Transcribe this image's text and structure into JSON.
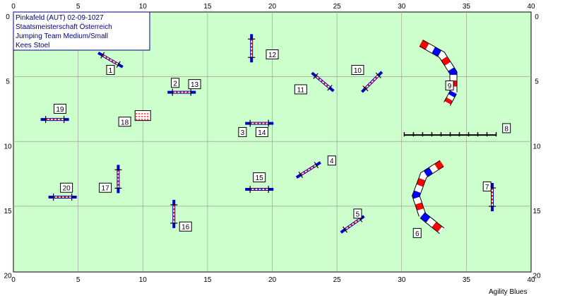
{
  "info": {
    "lines": [
      "Pinkafeld (AUT) 02-09-1027",
      "Staatsmeisterschaft Österreich",
      "Jumping Team Medium/Small",
      "Kees Stoel"
    ]
  },
  "footer": "Agility Blues",
  "axes": {
    "x_ticks": [
      "0",
      "5",
      "10",
      "15",
      "20",
      "25",
      "30",
      "35",
      "40"
    ],
    "y_ticks": [
      "0",
      "5",
      "10",
      "15",
      "20"
    ]
  },
  "colors": {
    "field": "#ccffcc",
    "grid": "#a0a0a0",
    "bar_blue": "#0000cc",
    "bar_red": "#ff0000",
    "tunnel_red": "#ff0000",
    "tunnel_blue": "#0000ff",
    "info_text": "#000080"
  },
  "course": {
    "field_width_m": 40,
    "field_height_m": 20,
    "jumps": [
      {
        "number": "1",
        "x": 7.5,
        "y": 3.7,
        "angle": 30
      },
      {
        "number": "2",
        "x": 13.0,
        "y": 6.2,
        "angle": 0
      },
      {
        "number": "3",
        "x": 19.0,
        "y": 8.6,
        "angle": 0
      },
      {
        "number": "4",
        "x": 22.8,
        "y": 12.2,
        "angle": -32
      },
      {
        "number": "5",
        "x": 26.2,
        "y": 16.4,
        "angle": -35
      },
      {
        "number": "7",
        "x": 37.0,
        "y": 14.3,
        "angle": 90
      },
      {
        "number": "10",
        "x": 27.7,
        "y": 5.4,
        "angle": -45
      },
      {
        "number": "11",
        "x": 23.9,
        "y": 5.4,
        "angle": 40
      },
      {
        "number": "12",
        "x": 18.4,
        "y": 2.8,
        "angle": 90
      },
      {
        "number": "15",
        "x": 19.0,
        "y": 13.7,
        "angle": 0
      },
      {
        "number": "16",
        "x": 12.4,
        "y": 15.6,
        "angle": 90
      },
      {
        "number": "17",
        "x": 8.1,
        "y": 12.9,
        "angle": 90
      },
      {
        "number": "19",
        "x": 3.2,
        "y": 8.3,
        "angle": 0
      },
      {
        "number": "20",
        "x": 3.8,
        "y": 14.3,
        "angle": 0
      }
    ],
    "labels": [
      {
        "text": "1",
        "x": 7.5,
        "y": 4.5
      },
      {
        "text": "2",
        "x": 12.5,
        "y": 5.5
      },
      {
        "text": "13",
        "x": 14.0,
        "y": 5.6
      },
      {
        "text": "3",
        "x": 17.7,
        "y": 9.3
      },
      {
        "text": "14",
        "x": 19.2,
        "y": 9.3
      },
      {
        "text": "4",
        "x": 24.6,
        "y": 11.5
      },
      {
        "text": "5",
        "x": 26.6,
        "y": 15.6
      },
      {
        "text": "6",
        "x": 31.2,
        "y": 17.1
      },
      {
        "text": "7",
        "x": 36.6,
        "y": 13.5
      },
      {
        "text": "8",
        "x": 38.1,
        "y": 9.0
      },
      {
        "text": "9",
        "x": 33.7,
        "y": 5.7
      },
      {
        "text": "10",
        "x": 26.6,
        "y": 4.5
      },
      {
        "text": "11",
        "x": 22.2,
        "y": 6.0
      },
      {
        "text": "12",
        "x": 20.0,
        "y": 3.3
      },
      {
        "text": "15",
        "x": 19.0,
        "y": 12.8
      },
      {
        "text": "16",
        "x": 13.3,
        "y": 16.6
      },
      {
        "text": "17",
        "x": 7.1,
        "y": 13.6
      },
      {
        "text": "18",
        "x": 8.6,
        "y": 8.5
      },
      {
        "text": "19",
        "x": 3.6,
        "y": 7.5
      },
      {
        "text": "20",
        "x": 4.1,
        "y": 13.6
      }
    ],
    "tunnels": [
      {
        "number": "6",
        "points": [
          [
            33.1,
            11.7
          ],
          [
            31.7,
            12.6
          ],
          [
            31.1,
            14.2
          ],
          [
            31.6,
            15.7
          ],
          [
            33.1,
            16.9
          ]
        ]
      },
      {
        "number": "9",
        "points": [
          [
            31.5,
            2.4
          ],
          [
            33.1,
            3.3
          ],
          [
            34.0,
            4.7
          ],
          [
            34.0,
            6.2
          ],
          [
            33.5,
            7.1
          ]
        ]
      }
    ],
    "wall": {
      "number": "18",
      "x": 10.0,
      "y": 8.0
    },
    "dogwalk": {
      "number": "8",
      "x_start": 30.2,
      "x_end": 37.3,
      "y": 9.5
    }
  }
}
